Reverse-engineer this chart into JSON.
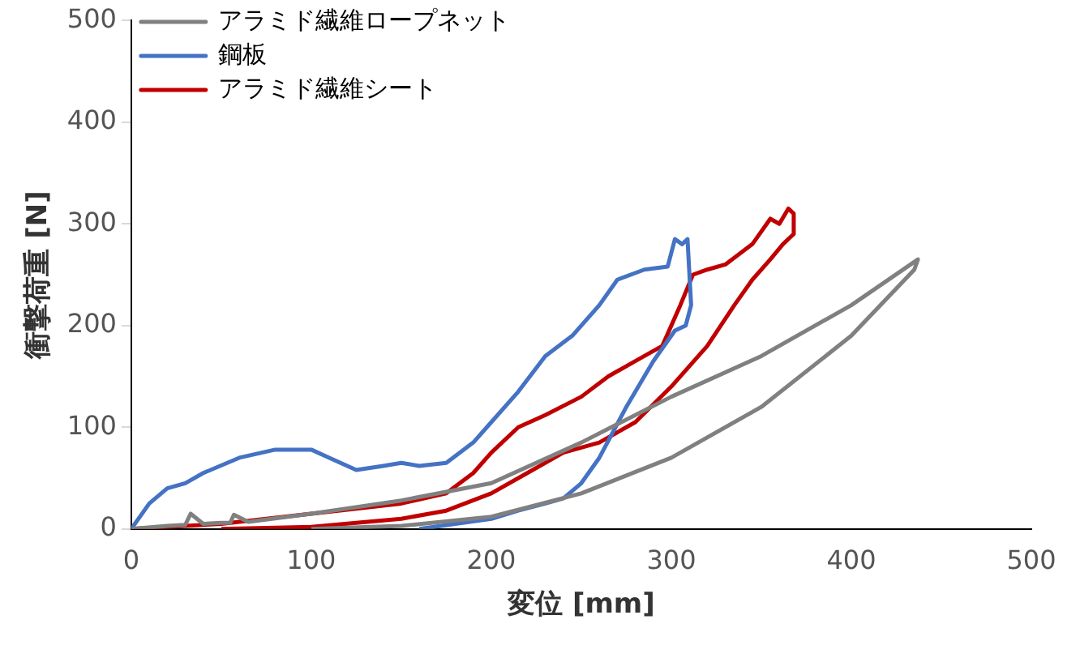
{
  "chart_data": {
    "type": "line",
    "xlabel": "変位 [mm]",
    "ylabel": "衝撃荷重 [N]",
    "xlim": [
      0,
      500
    ],
    "xticks": [
      0,
      100,
      200,
      300,
      400,
      500
    ],
    "ylim": [
      0,
      500
    ],
    "yticks": [
      0,
      100,
      200,
      300,
      400,
      500
    ],
    "grid": false,
    "legend": "top left",
    "marker": "none",
    "line_style": "solid",
    "series": [
      {
        "name": "アラミド繊維ロープネット",
        "color": "#808080",
        "x": [
          0,
          20,
          30,
          33,
          40,
          50,
          55,
          57,
          65,
          100,
          150,
          200,
          250,
          300,
          350,
          400,
          437,
          435,
          400,
          350,
          300,
          250,
          200,
          150,
          100
        ],
        "values": [
          0,
          3,
          4,
          15,
          5,
          6,
          6,
          14,
          7,
          15,
          28,
          45,
          85,
          130,
          170,
          220,
          265,
          255,
          190,
          120,
          70,
          35,
          12,
          3,
          0
        ]
      },
      {
        "name": "鋼板",
        "color": "#4472c4",
        "x": [
          0,
          10,
          20,
          30,
          40,
          60,
          80,
          100,
          110,
          125,
          140,
          150,
          160,
          175,
          190,
          200,
          215,
          230,
          245,
          260,
          270,
          285,
          298,
          302,
          306,
          309,
          311,
          308,
          302,
          290,
          275,
          260,
          250,
          240,
          230,
          215,
          200,
          180,
          160
        ],
        "values": [
          0,
          25,
          40,
          45,
          55,
          70,
          78,
          78,
          70,
          58,
          62,
          65,
          62,
          65,
          85,
          105,
          135,
          170,
          190,
          220,
          245,
          255,
          258,
          285,
          280,
          285,
          220,
          200,
          195,
          165,
          120,
          70,
          45,
          30,
          25,
          18,
          10,
          5,
          0
        ]
      },
      {
        "name": "アラミド繊維シート",
        "color": "#c00000",
        "x": [
          0,
          50,
          100,
          150,
          175,
          190,
          200,
          215,
          230,
          250,
          265,
          280,
          295,
          305,
          312,
          320,
          330,
          345,
          355,
          360,
          365,
          368,
          368,
          362,
          355,
          345,
          335,
          320,
          300,
          280,
          260,
          240,
          220,
          200,
          175,
          150,
          100,
          50
        ],
        "values": [
          0,
          5,
          15,
          25,
          35,
          55,
          75,
          100,
          112,
          130,
          150,
          165,
          180,
          220,
          250,
          255,
          260,
          280,
          305,
          300,
          315,
          310,
          290,
          280,
          265,
          245,
          220,
          180,
          140,
          105,
          85,
          75,
          55,
          35,
          18,
          10,
          2,
          0
        ]
      }
    ]
  }
}
